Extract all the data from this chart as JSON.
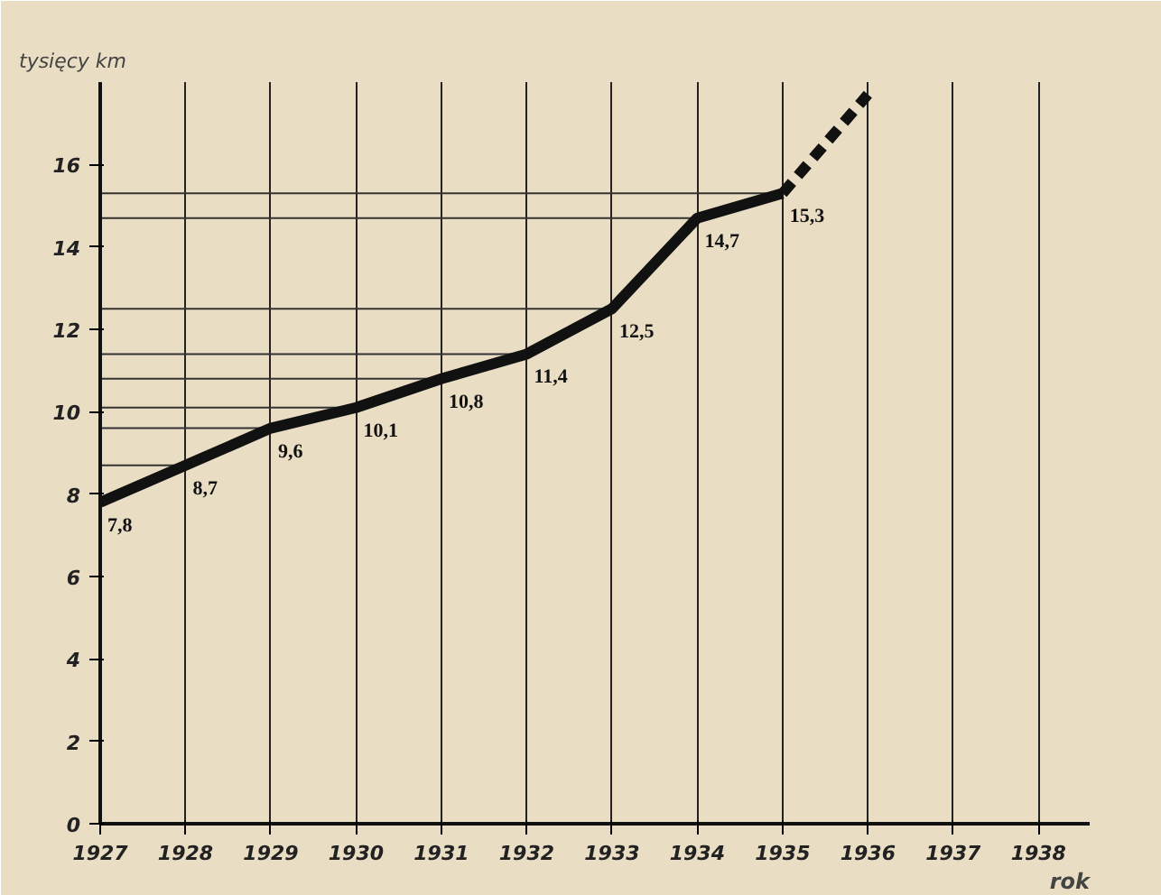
{
  "chart_data": {
    "type": "line",
    "ylabel": "tysięcy km",
    "xlabel": "rok",
    "xlim": [
      1927,
      1938.6
    ],
    "xticks": [
      1927,
      1928,
      1929,
      1930,
      1931,
      1932,
      1933,
      1934,
      1935,
      1936,
      1937,
      1938
    ],
    "ylim": [
      0,
      18
    ],
    "yticks": [
      0,
      2,
      4,
      6,
      8,
      10,
      12,
      14,
      16
    ],
    "grid": "x",
    "series": [
      {
        "color": "#111111",
        "x": [
          1927,
          1928,
          1929,
          1930,
          1931,
          1932,
          1933,
          1934,
          1935
        ],
        "values": [
          7.8,
          8.7,
          9.6,
          10.1,
          10.8,
          11.4,
          12.5,
          14.7,
          15.3
        ],
        "value_labels": [
          "7,8",
          "8,7",
          "9,6",
          "10,1",
          "10,8",
          "11,4",
          "12,5",
          "14,7",
          "15,3"
        ],
        "line_style": "solid"
      },
      {
        "color": "#111111",
        "x": [
          1935,
          1936
        ],
        "values": [
          15.3,
          17.7
        ],
        "line_style": "dashed"
      }
    ]
  }
}
